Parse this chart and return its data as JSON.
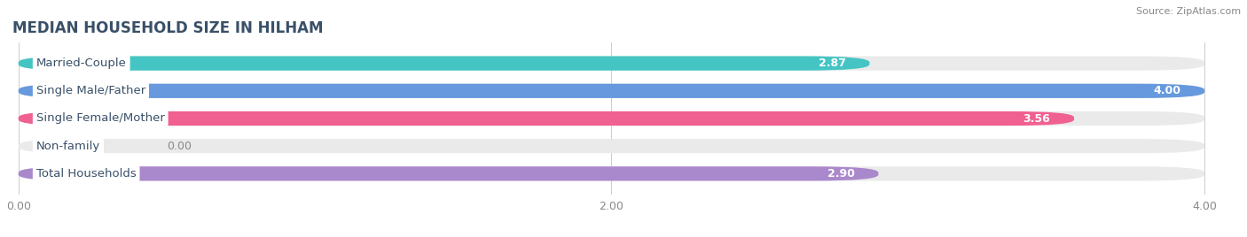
{
  "title": "MEDIAN HOUSEHOLD SIZE IN HILHAM",
  "source": "Source: ZipAtlas.com",
  "categories": [
    "Married-Couple",
    "Single Male/Father",
    "Single Female/Mother",
    "Non-family",
    "Total Households"
  ],
  "values": [
    2.87,
    4.0,
    3.56,
    0.0,
    2.9
  ],
  "bar_colors": [
    "#45C4C4",
    "#6699DD",
    "#F06090",
    "#F5C98A",
    "#AA88CC"
  ],
  "bar_bg_color": "#EAEAEA",
  "xlim_max": 4.0,
  "xticks": [
    0.0,
    2.0,
    4.0
  ],
  "xtick_labels": [
    "0.00",
    "2.00",
    "4.00"
  ],
  "bg_color": "#FFFFFF",
  "title_color": "#3A5068",
  "title_fontsize": 12,
  "source_fontsize": 8,
  "label_fontsize": 9.5,
  "value_fontsize": 9,
  "bar_height": 0.52,
  "bar_gap": 0.48
}
